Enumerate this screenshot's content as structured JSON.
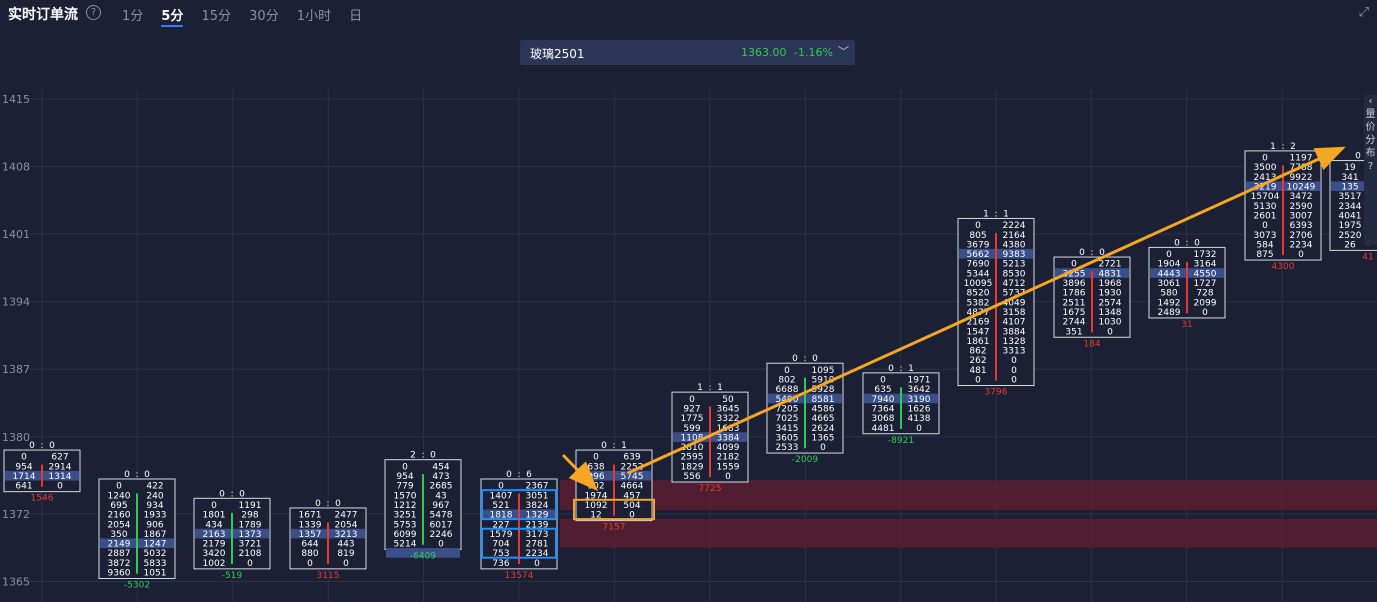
{
  "header": {
    "title": "实时订单流",
    "help_icon": "?",
    "tabs": [
      "1分",
      "5分",
      "15分",
      "30分",
      "1小时",
      "日"
    ],
    "active_tab": "5分",
    "expand_icon": "⤢"
  },
  "ticker": {
    "name": "玻璃2501",
    "price": "1363.00",
    "change": "-1.16%",
    "dropdown_icon": "﹀"
  },
  "side_panel": {
    "collapse_icon": "‹",
    "label": "量价分布",
    "help_icon": "?"
  },
  "colors": {
    "background": "#1b2035",
    "buy": "#2ecc55",
    "sell": "#e53935",
    "poc_highlight": "#3a4f8a",
    "zone": "#5a1e30",
    "arrow": "#f5a623",
    "box_blue": "#1e90ff",
    "box_orange": "#f5a623"
  },
  "chart_data": {
    "type": "footprint",
    "y_ticks": [
      1415,
      1408,
      1401,
      1394,
      1387,
      1380,
      1372,
      1365
    ],
    "ylim": [
      1364,
      1416
    ],
    "price_step": 1,
    "zones": [
      [
        1368.5,
        1371.5
      ],
      [
        1372.4,
        1375.5
      ]
    ],
    "candles": [
      {
        "x": 42,
        "top": 1378,
        "header": [
          "0",
          "0"
        ],
        "poc": 1376,
        "delta": "1546",
        "delta_color": "sell",
        "levels": [
          [
            "0",
            "627"
          ],
          [
            "954",
            "2914"
          ],
          [
            "1714",
            "1314"
          ],
          [
            "641",
            "0"
          ]
        ]
      },
      {
        "x": 137,
        "top": 1375,
        "header": [
          "0",
          "0"
        ],
        "poc": 1369,
        "delta": "-5302",
        "delta_color": "buy",
        "levels": [
          [
            "0",
            "422"
          ],
          [
            "1240",
            "240"
          ],
          [
            "695",
            "934"
          ],
          [
            "2160",
            "1933"
          ],
          [
            "2054",
            "906"
          ],
          [
            "350",
            "1867"
          ],
          [
            "2149",
            "1247"
          ],
          [
            "2887",
            "5032"
          ],
          [
            "3872",
            "5833"
          ],
          [
            "9360",
            "1051"
          ]
        ]
      },
      {
        "x": 232,
        "top": 1373,
        "header": [
          "0",
          "0"
        ],
        "poc": 1370,
        "delta": "-519",
        "delta_color": "buy",
        "levels": [
          [
            "0",
            "1191"
          ],
          [
            "1801",
            "298"
          ],
          [
            "434",
            "1789"
          ],
          [
            "2163",
            "1373"
          ],
          [
            "2179",
            "3721"
          ],
          [
            "3420",
            "2108"
          ],
          [
            "1002",
            "0"
          ]
        ]
      },
      {
        "x": 328,
        "top": 1372,
        "header": [
          "0",
          "0"
        ],
        "poc": 1370,
        "delta": "3115",
        "delta_color": "sell",
        "levels": [
          [
            "1671",
            "2477"
          ],
          [
            "1339",
            "2054"
          ],
          [
            "1357",
            "3213"
          ],
          [
            "644",
            "443"
          ],
          [
            "880",
            "819"
          ],
          [
            "0",
            "0"
          ]
        ]
      },
      {
        "x": 423,
        "top": 1377,
        "header": [
          "2",
          "0"
        ],
        "poc": 1368,
        "delta": "-6409",
        "delta_color": "buy",
        "levels": [
          [
            "0",
            "454"
          ],
          [
            "954",
            "473"
          ],
          [
            "779",
            "2685"
          ],
          [
            "1570",
            "43"
          ],
          [
            "1212",
            "967"
          ],
          [
            "3251",
            "5478"
          ],
          [
            "5753",
            "6017"
          ],
          [
            "6099",
            "2246"
          ],
          [
            "5214",
            "0"
          ]
        ]
      },
      {
        "x": 519,
        "top": 1375,
        "header": [
          "0",
          "6"
        ],
        "poc": 1372,
        "delta": "13574",
        "delta_color": "sell",
        "levels": [
          [
            "0",
            "2367"
          ],
          [
            "1407",
            "3051"
          ],
          [
            "521",
            "3824"
          ],
          [
            "1818",
            "1329"
          ],
          [
            "227",
            "2139"
          ],
          [
            "1579",
            "3173"
          ],
          [
            "704",
            "2781"
          ],
          [
            "753",
            "2234"
          ],
          [
            "736",
            "0"
          ]
        ]
      },
      {
        "x": 614,
        "top": 1378,
        "header": [
          "0",
          "1"
        ],
        "poc": 1376,
        "delta": "7157",
        "delta_color": "sell",
        "levels": [
          [
            "0",
            "639"
          ],
          [
            "638",
            "2252"
          ],
          [
            "996",
            "5745"
          ],
          [
            "302",
            "4664"
          ],
          [
            "1974",
            "457"
          ],
          [
            "1092",
            "504"
          ],
          [
            "12",
            "0"
          ]
        ]
      },
      {
        "x": 710,
        "top": 1384,
        "header": [
          "1",
          "1"
        ],
        "poc": 1380,
        "delta": "7725",
        "delta_color": "sell",
        "levels": [
          [
            "0",
            "50"
          ],
          [
            "927",
            "3645"
          ],
          [
            "1775",
            "3322"
          ],
          [
            "599",
            "1683"
          ],
          [
            "1108",
            "3384"
          ],
          [
            "2810",
            "4099"
          ],
          [
            "2595",
            "2182"
          ],
          [
            "1829",
            "1559"
          ],
          [
            "556",
            "0"
          ]
        ]
      },
      {
        "x": 805,
        "top": 1387,
        "header": [
          "0",
          "0"
        ],
        "poc": 1384,
        "delta": "-2009",
        "delta_color": "buy",
        "levels": [
          [
            "0",
            "1095"
          ],
          [
            "802",
            "5910"
          ],
          [
            "6688",
            "5928"
          ],
          [
            "5490",
            "8581"
          ],
          [
            "7205",
            "4586"
          ],
          [
            "7025",
            "4665"
          ],
          [
            "3415",
            "2624"
          ],
          [
            "3605",
            "1365"
          ],
          [
            "2533",
            "0"
          ]
        ]
      },
      {
        "x": 901,
        "top": 1386,
        "header": [
          "0",
          "1"
        ],
        "poc": 1384,
        "delta": "-8921",
        "delta_color": "buy",
        "levels": [
          [
            "0",
            "1971"
          ],
          [
            "635",
            "3642"
          ],
          [
            "7940",
            "3190"
          ],
          [
            "7364",
            "1626"
          ],
          [
            "3068",
            "4138"
          ],
          [
            "4481",
            "0"
          ]
        ]
      },
      {
        "x": 996,
        "top": 1402,
        "header": [
          "1",
          "1"
        ],
        "poc": 1399,
        "delta": "3796",
        "delta_color": "sell",
        "levels": [
          [
            "0",
            "2224"
          ],
          [
            "805",
            "2164"
          ],
          [
            "3679",
            "4380"
          ],
          [
            "5662",
            "9383"
          ],
          [
            "7690",
            "5213"
          ],
          [
            "5344",
            "8530"
          ],
          [
            "10095",
            "4712"
          ],
          [
            "8520",
            "5737"
          ],
          [
            "5382",
            "4049"
          ],
          [
            "4877",
            "3158"
          ],
          [
            "2169",
            "4107"
          ],
          [
            "1547",
            "3884"
          ],
          [
            "1861",
            "1328"
          ],
          [
            "862",
            "3313"
          ],
          [
            "262",
            "0"
          ],
          [
            "481",
            "0"
          ],
          [
            "0",
            "0"
          ]
        ]
      },
      {
        "x": 1092,
        "top": 1398,
        "header": [
          "0",
          "0"
        ],
        "poc": 1397,
        "delta": "184",
        "delta_color": "sell",
        "levels": [
          [
            "0",
            "2721"
          ],
          [
            "3255",
            "4831"
          ],
          [
            "3896",
            "1968"
          ],
          [
            "1786",
            "1930"
          ],
          [
            "2511",
            "2574"
          ],
          [
            "1675",
            "1348"
          ],
          [
            "2744",
            "1030"
          ],
          [
            "351",
            "0"
          ]
        ]
      },
      {
        "x": 1187,
        "top": 1399,
        "header": [
          "0",
          "0"
        ],
        "poc": 1397,
        "delta": "31",
        "delta_color": "sell",
        "levels": [
          [
            "0",
            "1732"
          ],
          [
            "1904",
            "3164"
          ],
          [
            "4443",
            "4550"
          ],
          [
            "3061",
            "1727"
          ],
          [
            "580",
            "728"
          ],
          [
            "1492",
            "2099"
          ],
          [
            "2489",
            "0"
          ]
        ]
      },
      {
        "x": 1283,
        "top": 1409,
        "header": [
          "1",
          "2"
        ],
        "poc": 1406,
        "delta": "4300",
        "delta_color": "sell",
        "levels": [
          [
            "0",
            "1197"
          ],
          [
            "3500",
            "7788"
          ],
          [
            "2413",
            "9922"
          ],
          [
            "3219",
            "10249"
          ],
          [
            "15704",
            "3472"
          ],
          [
            "5130",
            "2590"
          ],
          [
            "2601",
            "3007"
          ],
          [
            "0",
            "6393"
          ],
          [
            "3073",
            "2706"
          ],
          [
            "584",
            "2234"
          ],
          [
            "875",
            "0"
          ]
        ]
      },
      {
        "x": 1368,
        "top": 1408,
        "header": [
          "0",
          ""
        ],
        "poc": 1406,
        "delta": "41",
        "delta_color": "sell",
        "levels": [
          [
            "19",
            ""
          ],
          [
            "341",
            ""
          ],
          [
            "135",
            ""
          ],
          [
            "3517",
            ""
          ],
          [
            "2344",
            ""
          ],
          [
            "4041",
            ""
          ],
          [
            "1975",
            ""
          ],
          [
            "2520",
            ""
          ],
          [
            "26",
            ""
          ]
        ]
      }
    ]
  }
}
